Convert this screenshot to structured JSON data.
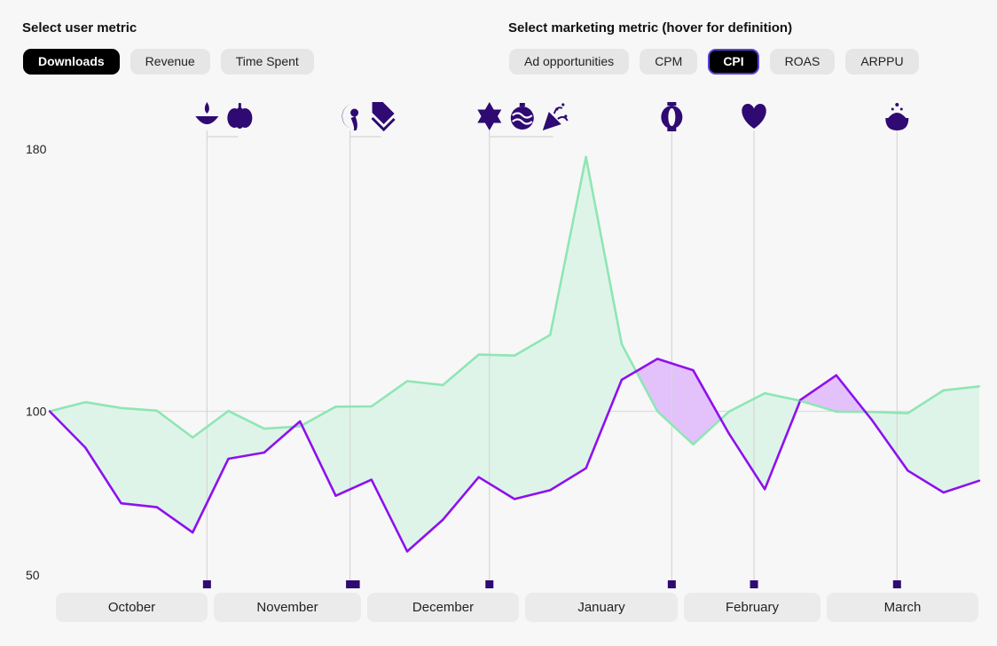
{
  "user_metric": {
    "label": "Select user metric",
    "options": [
      "Downloads",
      "Revenue",
      "Time Spent"
    ],
    "selected": "Downloads"
  },
  "marketing_metric": {
    "label": "Select marketing metric (hover for definition)",
    "options": [
      "Ad opportunities",
      "CPM",
      "CPI",
      "ROAS",
      "ARPPU"
    ],
    "selected": "CPI"
  },
  "months": [
    "October",
    "November",
    "December",
    "January",
    "February",
    "March"
  ],
  "colors": {
    "user_line": "#8ee6b4",
    "user_fill": "#dff4e8",
    "marketing_line": "#8f10ef",
    "marketing_fill": "#e3c2fb",
    "event_marker": "#2e0a72",
    "baseline": "#dcdcdc"
  },
  "events": [
    {
      "icons": [
        "diya-icon",
        "pumpkin-icon"
      ],
      "index": 4.4
    },
    {
      "icons": [
        "turkey-icon",
        "price-tag-icon"
      ],
      "index": 8.4
    },
    {
      "icons": [
        "star-of-david-icon",
        "ornament-icon",
        "party-popper-icon"
      ],
      "index": 12.3
    },
    {
      "icons": [
        "lantern-icon"
      ],
      "index": 17.4
    },
    {
      "icons": [
        "heart-icon"
      ],
      "index": 19.7
    },
    {
      "icons": [
        "iftar-bowl-icon"
      ],
      "index": 23.7
    }
  ],
  "chart_data": {
    "type": "line",
    "title": "",
    "xlabel": "",
    "ylabel": "",
    "yticks": [
      180,
      100,
      50
    ],
    "ylim": [
      50,
      180
    ],
    "x": [
      0,
      1,
      2,
      3,
      4,
      5,
      6,
      7,
      8,
      9,
      10,
      11,
      12,
      13,
      14,
      15,
      16,
      17,
      18,
      19,
      20,
      21,
      22,
      23,
      24,
      25,
      26
    ],
    "series": [
      {
        "name": "Downloads",
        "values": [
          100,
          102.8,
          101,
          100.2,
          92,
          100.1,
          94.7,
          95.4,
          101.4,
          101.5,
          109.2,
          108,
          117.3,
          117,
          123.3,
          177.6,
          120.5,
          100,
          89.9,
          99.9,
          105.5,
          103.2,
          99.9,
          99.8,
          99.4,
          106.4,
          107.6
        ]
      },
      {
        "name": "CPI",
        "values": [
          100,
          88.9,
          71.9,
          70.7,
          63,
          85.5,
          87.4,
          96.9,
          74.2,
          79.1,
          57.2,
          66.9,
          79.9,
          73.2,
          75.9,
          82.6,
          109.6,
          116,
          112.5,
          93.2,
          76.2,
          103.5,
          111,
          97.3,
          81.9,
          75.2,
          78.8
        ]
      }
    ]
  }
}
